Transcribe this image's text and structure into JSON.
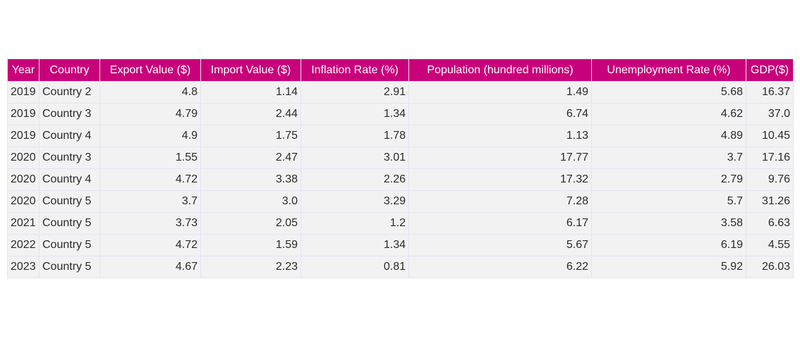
{
  "chart_data": {
    "type": "table",
    "columns": [
      "Year",
      "Country",
      "Export Value ($)",
      "Import Value ($)",
      "Inflation Rate (%)",
      "Population (hundred millions)",
      "Unemployment Rate (%)",
      "GDP($)"
    ],
    "rows": [
      [
        "2019",
        "Country 2",
        "4.8",
        "1.14",
        "2.91",
        "1.49",
        "5.68",
        "16.37"
      ],
      [
        "2019",
        "Country 3",
        "4.79",
        "2.44",
        "1.34",
        "6.74",
        "4.62",
        "37.0"
      ],
      [
        "2019",
        "Country 4",
        "4.9",
        "1.75",
        "1.78",
        "1.13",
        "4.89",
        "10.45"
      ],
      [
        "2020",
        "Country 3",
        "1.55",
        "2.47",
        "3.01",
        "17.77",
        "3.7",
        "17.16"
      ],
      [
        "2020",
        "Country 4",
        "4.72",
        "3.38",
        "2.26",
        "17.32",
        "2.79",
        "9.76"
      ],
      [
        "2020",
        "Country 5",
        "3.7",
        "3.0",
        "3.29",
        "7.28",
        "5.7",
        "31.26"
      ],
      [
        "2021",
        "Country 5",
        "3.73",
        "2.05",
        "1.2",
        "6.17",
        "3.58",
        "6.63"
      ],
      [
        "2022",
        "Country 5",
        "4.72",
        "1.59",
        "1.34",
        "5.67",
        "6.19",
        "4.55"
      ],
      [
        "2023",
        "Country 5",
        "4.67",
        "2.23",
        "0.81",
        "6.22",
        "5.92",
        "26.03"
      ]
    ],
    "colors": {
      "header_background": "#c8007a",
      "header_text": "#ffffff",
      "cell_background": "#f2f2f2",
      "border": "#e6e3f5"
    }
  }
}
